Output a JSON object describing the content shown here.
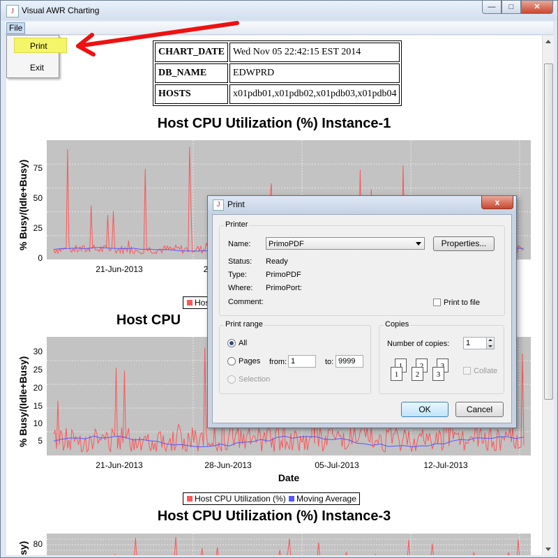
{
  "window": {
    "title": "Visual AWR Charting",
    "app_icon_glyph": "J"
  },
  "menubar": {
    "file": "File"
  },
  "file_menu": {
    "items": [
      "Print",
      "Exit"
    ],
    "highlight_color": "#f5f56a"
  },
  "info_table": [
    {
      "key": "CHART_DATE",
      "value": "Wed Nov 05 22:42:15 EST 2014"
    },
    {
      "key": "DB_NAME",
      "value": "EDWPRD"
    },
    {
      "key": "HOSTS",
      "value": "x01pdb01,x01pdb02,x01pdb03,x01pdb04"
    }
  ],
  "charts": [
    {
      "title": "Host CPU Utilization (%) Instance-1",
      "ylabel": "% Busy/(Idle+Busy)",
      "yticks": [
        "75",
        "50",
        "25",
        "0"
      ],
      "xticks": [
        "21-Jun-2013",
        "2"
      ],
      "legend_visible": "Hos"
    },
    {
      "title": "Host CPU",
      "ylabel": "% Busy/(Idle+Busy)",
      "yticks": [
        "30",
        "25",
        "20",
        "15",
        "10",
        "5"
      ],
      "xticks": [
        "21-Jun-2013",
        "28-Jun-2013",
        "05-Jul-2013",
        "12-Jul-2013"
      ],
      "xlabel": "Date",
      "legend": [
        {
          "label": "Host CPU Utilization (%)",
          "color": "#ff5555"
        },
        {
          "label": "Moving Average",
          "color": "#5555ff"
        }
      ]
    },
    {
      "title": "Host CPU Utilization (%) Instance-3",
      "ylabel": "sy)",
      "yticks": [
        "80"
      ]
    }
  ],
  "chart_data": [
    {
      "type": "line",
      "title": "Host CPU Utilization (%) Instance-1",
      "ylabel": "% Busy/(Idle+Busy)",
      "ylim": [
        0,
        95
      ],
      "series": [
        {
          "name": "Host CPU Utilization (%)",
          "color": "#ff5555",
          "baseline": 8,
          "spikes_max": 93
        },
        {
          "name": "Moving Average",
          "color": "#5555ff",
          "level": 8
        }
      ],
      "x_ticks": [
        "21-Jun-2013"
      ]
    },
    {
      "type": "line",
      "title": "",
      "xlabel": "Date",
      "ylabel": "% Busy/(Idle+Busy)",
      "ylim": [
        3,
        33
      ],
      "series": [
        {
          "name": "Host CPU Utilization (%)",
          "color": "#ff5555",
          "baseline": 7,
          "spikes_max": 31
        },
        {
          "name": "Moving Average",
          "color": "#5555ff",
          "level": 6.5
        }
      ],
      "x_ticks": [
        "21-Jun-2013",
        "28-Jun-2013",
        "05-Jul-2013",
        "12-Jul-2013"
      ]
    }
  ],
  "print_dialog": {
    "title": "Print",
    "close_glyph": "x",
    "printer_group": "Printer",
    "name_label": "Name:",
    "printer_name": "PrimoPDF",
    "properties_button": "Properties...",
    "status_label": "Status:",
    "status_value": "Ready",
    "type_label": "Type:",
    "type_value": "PrimoPDF",
    "where_label": "Where:",
    "where_value": "PrimoPort:",
    "comment_label": "Comment:",
    "print_to_file": "Print to file",
    "range_group": "Print range",
    "range_all": "All",
    "range_pages": "Pages",
    "from_label": "from:",
    "from_value": "1",
    "to_label": "to:",
    "to_value": "9999",
    "range_selection": "Selection",
    "copies_group": "Copies",
    "copies_label": "Number of copies:",
    "copies_value": "1",
    "collate_label": "Collate",
    "ok_button": "OK",
    "cancel_button": "Cancel"
  },
  "annotation": {
    "arrow_color": "#ee1111"
  }
}
